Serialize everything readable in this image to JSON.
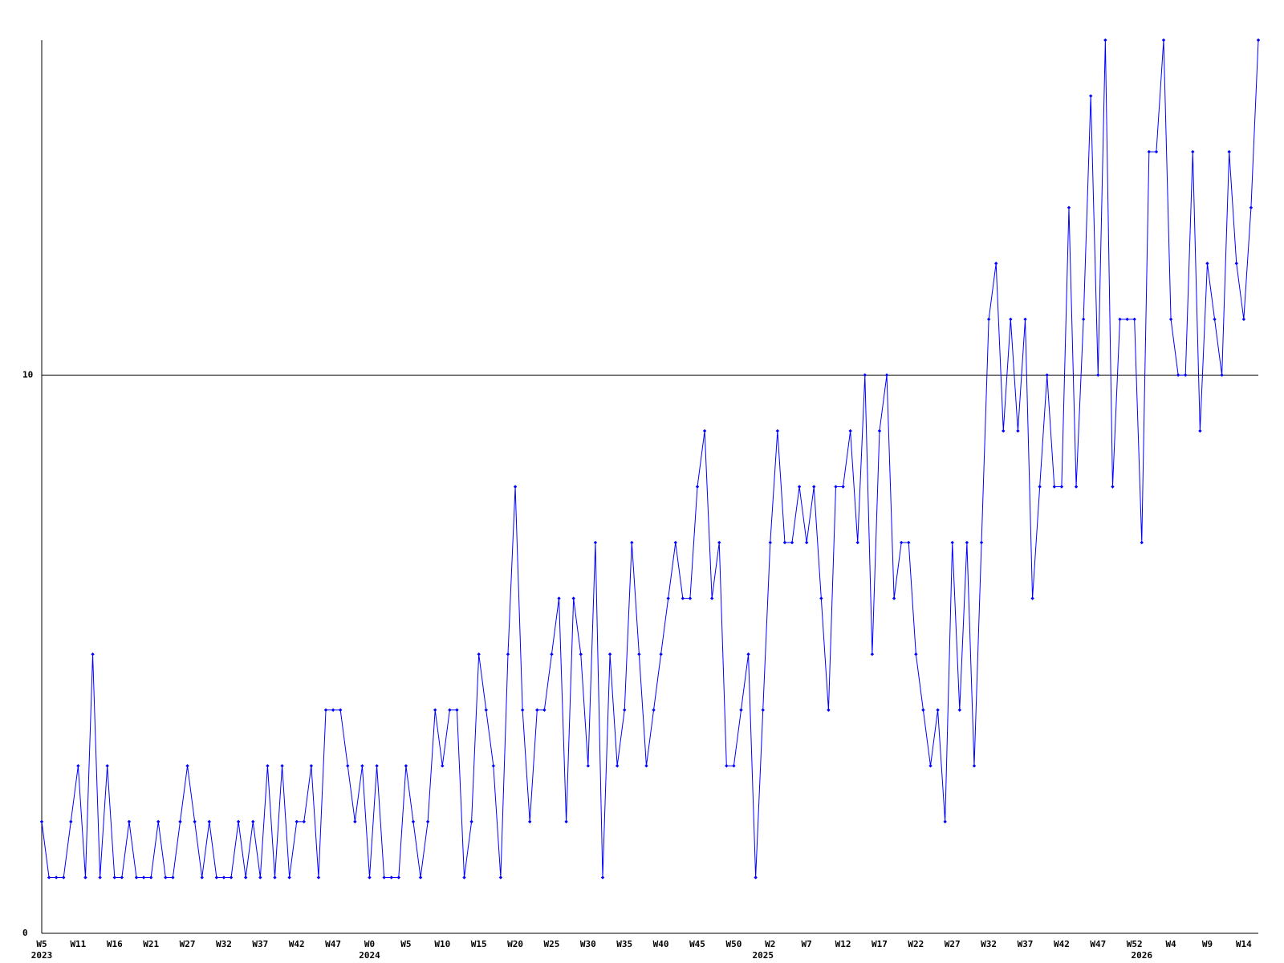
{
  "chart_data": {
    "type": "line",
    "categories": [
      "W5",
      null,
      null,
      null,
      null,
      "W11",
      null,
      null,
      null,
      null,
      "W16",
      null,
      null,
      null,
      null,
      "W21",
      null,
      null,
      null,
      null,
      "W27",
      null,
      null,
      null,
      null,
      "W32",
      null,
      null,
      null,
      null,
      "W37",
      null,
      null,
      null,
      null,
      "W42",
      null,
      null,
      null,
      null,
      "W47",
      null,
      null,
      null,
      null,
      "W0",
      null,
      null,
      null,
      null,
      "W5",
      null,
      null,
      null,
      null,
      "W10",
      null,
      null,
      null,
      null,
      "W15",
      null,
      null,
      null,
      null,
      "W20",
      null,
      null,
      null,
      null,
      "W25",
      null,
      null,
      null,
      null,
      "W30",
      null,
      null,
      null,
      null,
      "W35",
      null,
      null,
      null,
      null,
      "W40",
      null,
      null,
      null,
      null,
      "W45",
      null,
      null,
      null,
      null,
      "W50",
      null,
      null,
      null,
      null,
      "W2",
      null,
      null,
      null,
      null,
      "W7",
      null,
      null,
      null,
      null,
      "W12",
      null,
      null,
      null,
      null,
      "W17",
      null,
      null,
      null,
      null,
      "W22",
      null,
      null,
      null,
      null,
      "W27",
      null,
      null,
      null,
      null,
      "W32",
      null,
      null,
      null,
      null,
      "W37",
      null,
      null,
      null,
      null,
      "W42",
      null,
      null,
      null,
      null,
      "W47",
      null,
      null,
      null,
      null,
      "W52",
      null,
      null,
      null,
      null,
      "W4",
      null,
      null,
      null,
      null,
      "W9",
      null,
      null,
      null,
      null,
      "W14",
      null,
      null
    ],
    "years": [
      "2023",
      null,
      null,
      null,
      null,
      null,
      null,
      null,
      null,
      null,
      null,
      null,
      null,
      null,
      null,
      null,
      null,
      null,
      null,
      null,
      null,
      null,
      null,
      null,
      null,
      null,
      null,
      null,
      null,
      null,
      null,
      null,
      null,
      null,
      null,
      null,
      null,
      null,
      null,
      null,
      null,
      null,
      null,
      null,
      null,
      "2024",
      null,
      null,
      null,
      null,
      null,
      null,
      null,
      null,
      null,
      null,
      null,
      null,
      null,
      null,
      null,
      null,
      null,
      null,
      null,
      null,
      null,
      null,
      null,
      null,
      null,
      null,
      null,
      null,
      null,
      null,
      null,
      null,
      null,
      null,
      null,
      null,
      null,
      null,
      null,
      null,
      null,
      null,
      null,
      null,
      null,
      null,
      null,
      null,
      null,
      null,
      null,
      null,
      null,
      "2025",
      null,
      null,
      null,
      null,
      null,
      null,
      null,
      null,
      null,
      null,
      null,
      null,
      null,
      null,
      null,
      null,
      null,
      null,
      null,
      null,
      null,
      null,
      null,
      null,
      null,
      null,
      null,
      null,
      null,
      null,
      null,
      null,
      null,
      null,
      null,
      null,
      null,
      null,
      null,
      null,
      null,
      null,
      null,
      null,
      null,
      null,
      null,
      null,
      null,
      null,
      null,
      "2026",
      null,
      null,
      null,
      null,
      null,
      null,
      null,
      null,
      null,
      null,
      null,
      null,
      null,
      null,
      null,
      null
    ],
    "values": [
      2,
      1,
      1,
      1,
      2,
      3,
      1,
      5,
      1,
      3,
      1,
      1,
      2,
      1,
      1,
      1,
      2,
      1,
      1,
      2,
      3,
      2,
      1,
      2,
      1,
      1,
      1,
      2,
      1,
      2,
      1,
      3,
      1,
      3,
      1,
      2,
      2,
      3,
      1,
      4,
      4,
      4,
      3,
      2,
      3,
      1,
      3,
      1,
      1,
      1,
      3,
      2,
      1,
      2,
      4,
      3,
      4,
      4,
      1,
      2,
      5,
      4,
      3,
      1,
      5,
      8,
      4,
      2,
      4,
      4,
      5,
      6,
      2,
      6,
      5,
      3,
      7,
      1,
      5,
      3,
      4,
      7,
      5,
      3,
      4,
      5,
      6,
      7,
      6,
      6,
      8,
      9,
      6,
      7,
      3,
      3,
      4,
      5,
      1,
      4,
      7,
      9,
      7,
      7,
      8,
      7,
      8,
      6,
      4,
      8,
      8,
      9,
      7,
      10,
      5,
      9,
      10,
      6,
      7,
      7,
      5,
      4,
      3,
      4,
      2,
      7,
      4,
      7,
      3,
      7,
      11,
      12,
      9,
      11,
      9,
      11,
      6,
      8,
      10,
      8,
      8,
      13,
      8,
      11,
      15,
      10,
      16,
      8,
      11,
      11,
      11,
      7,
      14,
      14,
      16,
      11,
      10,
      10,
      14,
      9,
      12,
      11,
      10,
      14,
      12,
      11,
      13,
      16
    ],
    "color": "#0000ff",
    "ylim": [
      0,
      16
    ],
    "yticks": [
      0,
      10
    ],
    "grid": true
  }
}
